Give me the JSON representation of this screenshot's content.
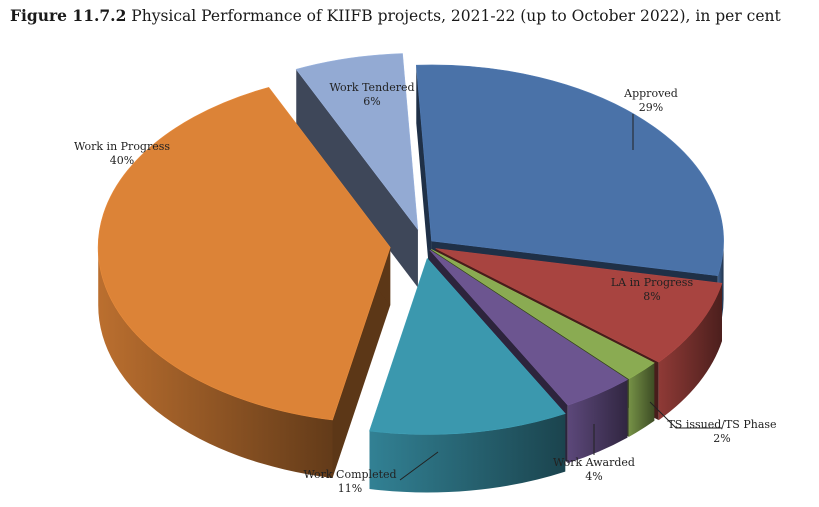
{
  "figure": {
    "number": "Figure 11.7.2",
    "caption": "Physical Performance of KIIFB projects, 2021-22 (up to October 2022), in per cent"
  },
  "chart_data": {
    "type": "pie",
    "title": "Physical Performance of KIIFB projects, 2021-22 (up to October 2022), in per cent",
    "style": "3d-exploded",
    "unit": "%",
    "slices": [
      {
        "label": "Approved",
        "value": 29,
        "value_label": "29%",
        "color": "#4a72a8"
      },
      {
        "label": "LA in Progress",
        "value": 8,
        "value_label": "8%",
        "color": "#a84440"
      },
      {
        "label": "TS issued/TS Phase",
        "value": 2,
        "value_label": "2%",
        "color": "#8aab52"
      },
      {
        "label": "Work Awarded",
        "value": 4,
        "value_label": "4%",
        "color": "#6c5590"
      },
      {
        "label": "Work Completed",
        "value": 11,
        "value_label": "11%",
        "color": "#3b98ae"
      },
      {
        "label": "Work in Progress",
        "value": 40,
        "value_label": "40%",
        "color": "#dc8337"
      },
      {
        "label": "Work Tendered",
        "value": 6,
        "value_label": "6%",
        "color": "#93aad3"
      }
    ]
  }
}
